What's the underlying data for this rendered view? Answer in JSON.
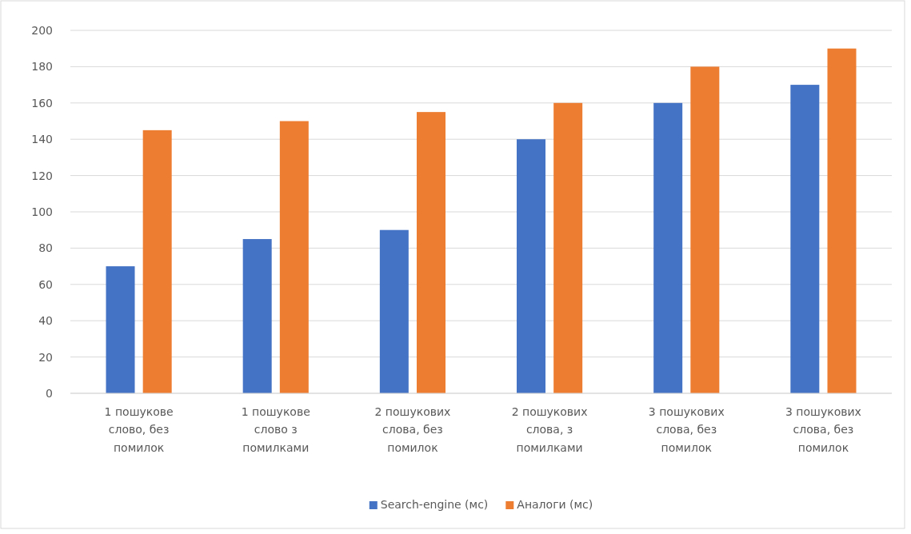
{
  "chart_data": {
    "type": "bar",
    "categories": [
      "1 пошукове слово, без помилок",
      "1 пошукове слово з помилками",
      "2 пошукових слова, без помилок",
      "2 пошукових слова, з помилками",
      "3 пошукових слова, без помилок",
      "3 пошукових слова, без помилок"
    ],
    "series": [
      {
        "name": "Search-engine (мс)",
        "color": "#4472c4",
        "values": [
          70,
          85,
          90,
          140,
          160,
          170
        ]
      },
      {
        "name": "Аналоги (мс)",
        "color": "#ed7d31",
        "values": [
          145,
          150,
          155,
          160,
          180,
          190
        ]
      }
    ],
    "ylim": [
      0,
      200
    ],
    "yticks": [
      0,
      20,
      40,
      60,
      80,
      100,
      120,
      140,
      160,
      180,
      200
    ],
    "grid": "y",
    "legend": "bottom"
  }
}
